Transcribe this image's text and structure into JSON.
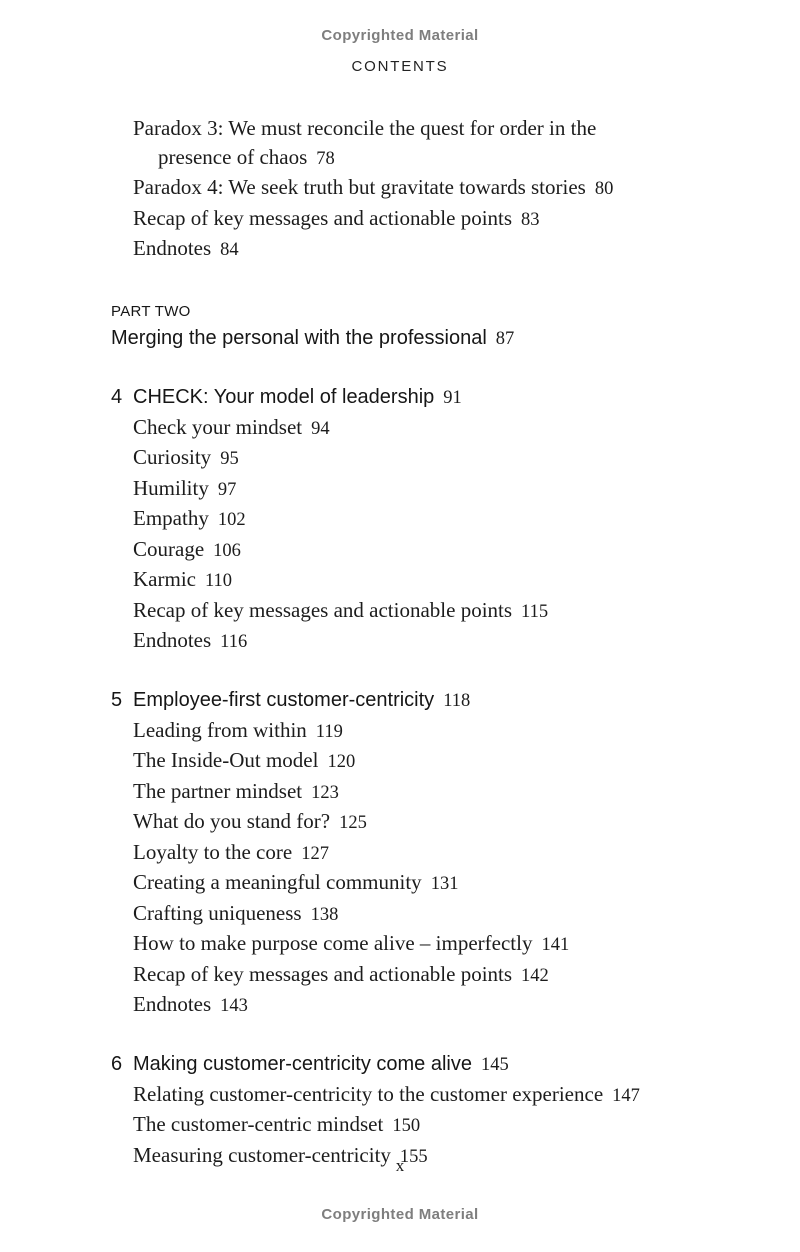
{
  "notices": {
    "top": "Copyrighted Material",
    "bottom": "Copyrighted Material"
  },
  "header": {
    "title": "CONTENTS"
  },
  "footer": {
    "page_number": "x"
  },
  "colors": {
    "text": "#1c1c1c",
    "notice_gray": "#7e7e7e",
    "background": "#ffffff"
  },
  "toc": {
    "carryover": {
      "items": [
        {
          "line1": "Paradox 3: We must reconcile the quest for order in the",
          "line2": "presence of chaos",
          "page": "78"
        },
        {
          "text": "Paradox 4: We seek truth but gravitate towards stories",
          "page": "80"
        },
        {
          "text": "Recap of key messages and actionable points",
          "page": "83"
        },
        {
          "text": "Endnotes",
          "page": "84"
        }
      ]
    },
    "part": {
      "label": "PART TWO",
      "title": "Merging the personal with the professional",
      "page": "87"
    },
    "chapters": [
      {
        "number": "4",
        "title": "CHECK: Your model of leadership",
        "page": "91",
        "items": [
          {
            "text": "Check your mindset",
            "page": "94"
          },
          {
            "text": "Curiosity",
            "page": "95"
          },
          {
            "text": "Humility",
            "page": "97"
          },
          {
            "text": "Empathy",
            "page": "102"
          },
          {
            "text": "Courage",
            "page": "106"
          },
          {
            "text": "Karmic",
            "page": "110"
          },
          {
            "text": "Recap of key messages and actionable points",
            "page": "115"
          },
          {
            "text": "Endnotes",
            "page": "116"
          }
        ]
      },
      {
        "number": "5",
        "title": "Employee-first customer-centricity",
        "page": "118",
        "items": [
          {
            "text": "Leading from within",
            "page": "119"
          },
          {
            "text": "The Inside-Out model",
            "page": "120"
          },
          {
            "text": "The partner mindset",
            "page": "123"
          },
          {
            "text": "What do you stand for?",
            "page": "125"
          },
          {
            "text": "Loyalty to the core",
            "page": "127"
          },
          {
            "text": "Creating a meaningful community",
            "page": "131"
          },
          {
            "text": "Crafting uniqueness",
            "page": "138"
          },
          {
            "text": "How to make purpose come alive – imperfectly",
            "page": "141"
          },
          {
            "text": "Recap of key messages and actionable points",
            "page": "142"
          },
          {
            "text": "Endnotes",
            "page": "143"
          }
        ]
      },
      {
        "number": "6",
        "title": "Making customer-centricity come alive",
        "page": "145",
        "items": [
          {
            "text": "Relating customer-centricity to the customer experience",
            "page": "147"
          },
          {
            "text": "The customer-centric mindset",
            "page": "150"
          },
          {
            "text": "Measuring customer-centricity",
            "page": "155"
          }
        ]
      }
    ]
  }
}
